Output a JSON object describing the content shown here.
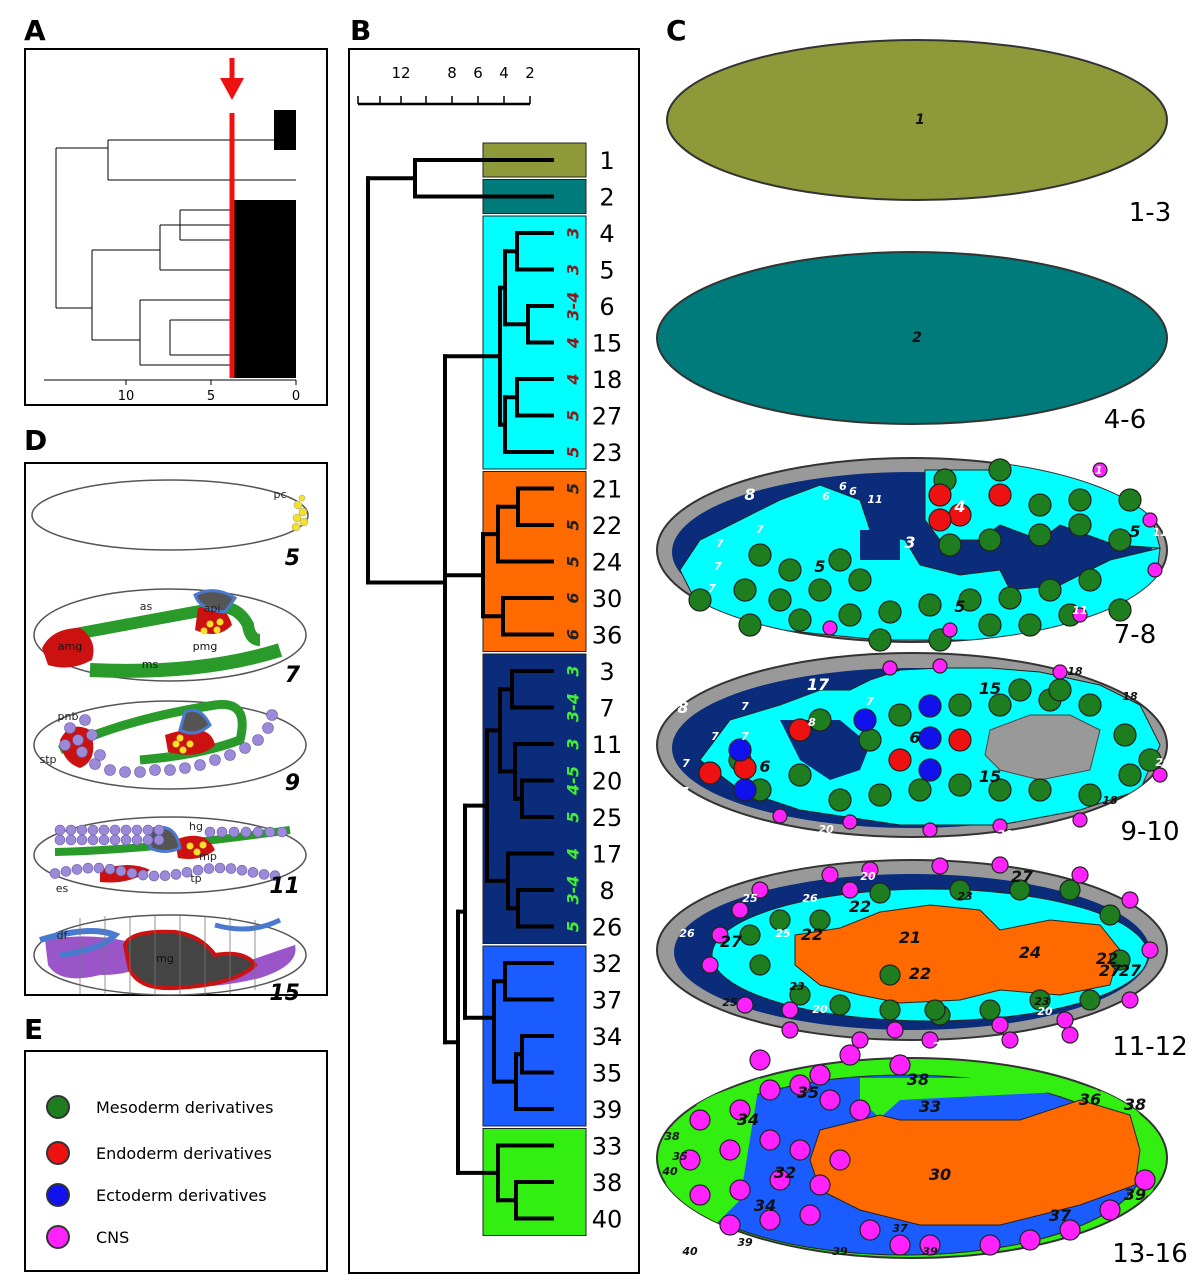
{
  "panels": {
    "a": "A",
    "b": "B",
    "c": "C",
    "d": "D",
    "e": "E"
  },
  "panel_a": {
    "ticks": [
      "10",
      "5",
      "0"
    ]
  },
  "panel_b": {
    "scale_ticks": [
      "12",
      "8",
      "6",
      "4",
      "2"
    ],
    "rows": [
      {
        "id": "1",
        "group": "olive",
        "stage": ""
      },
      {
        "id": "2",
        "group": "teal",
        "stage": ""
      },
      {
        "id": "4",
        "group": "cyan",
        "stage": "3"
      },
      {
        "id": "5",
        "group": "cyan",
        "stage": "3"
      },
      {
        "id": "6",
        "group": "cyan",
        "stage": "3-4"
      },
      {
        "id": "15",
        "group": "cyan",
        "stage": "4"
      },
      {
        "id": "18",
        "group": "cyan",
        "stage": "4"
      },
      {
        "id": "27",
        "group": "cyan",
        "stage": "5"
      },
      {
        "id": "23",
        "group": "cyan",
        "stage": "5"
      },
      {
        "id": "21",
        "group": "orange",
        "stage": "5"
      },
      {
        "id": "22",
        "group": "orange",
        "stage": "5"
      },
      {
        "id": "24",
        "group": "orange",
        "stage": "5"
      },
      {
        "id": "30",
        "group": "orange",
        "stage": "6"
      },
      {
        "id": "36",
        "group": "orange",
        "stage": "6"
      },
      {
        "id": "3",
        "group": "navy",
        "stage": "3"
      },
      {
        "id": "7",
        "group": "navy",
        "stage": "3-4"
      },
      {
        "id": "11",
        "group": "navy",
        "stage": "3"
      },
      {
        "id": "20",
        "group": "navy",
        "stage": "4-5"
      },
      {
        "id": "25",
        "group": "navy",
        "stage": "5"
      },
      {
        "id": "17",
        "group": "navy",
        "stage": "4"
      },
      {
        "id": "8",
        "group": "navy",
        "stage": "3-4"
      },
      {
        "id": "26",
        "group": "navy",
        "stage": "5"
      },
      {
        "id": "32",
        "group": "blue",
        "stage": ""
      },
      {
        "id": "37",
        "group": "blue",
        "stage": ""
      },
      {
        "id": "34",
        "group": "blue",
        "stage": ""
      },
      {
        "id": "35",
        "group": "blue",
        "stage": ""
      },
      {
        "id": "39",
        "group": "blue",
        "stage": ""
      },
      {
        "id": "33",
        "group": "green",
        "stage": ""
      },
      {
        "id": "38",
        "group": "green",
        "stage": ""
      },
      {
        "id": "40",
        "group": "green",
        "stage": ""
      }
    ]
  },
  "panel_c": {
    "stages": [
      "1-3",
      "4-6",
      "7-8",
      "9-10",
      "11-12",
      "13-16"
    ],
    "e1_label": "1",
    "e2_label": "2",
    "e3_labels": [
      "8",
      "3",
      "4",
      "5",
      "5",
      "5",
      "7",
      "7",
      "7",
      "7",
      "6",
      "6",
      "6",
      "11",
      "11",
      "11",
      "11"
    ],
    "e4_labels": [
      "17",
      "8",
      "7",
      "7",
      "7",
      "7",
      "7",
      "7",
      "8",
      "6",
      "6",
      "15",
      "15",
      "18",
      "18",
      "20",
      "20",
      "20",
      "18"
    ],
    "e5_labels": [
      "26",
      "25",
      "26",
      "25",
      "27",
      "23",
      "25",
      "20",
      "20",
      "20",
      "20",
      "20",
      "21",
      "22",
      "22",
      "22",
      "24",
      "22",
      "23",
      "27",
      "23",
      "27",
      "27"
    ],
    "e6_labels": [
      "38",
      "33",
      "36",
      "38",
      "35",
      "34",
      "32",
      "34",
      "30",
      "39",
      "37",
      "37",
      "39",
      "39",
      "38",
      "40",
      "35",
      "40",
      "39"
    ]
  },
  "panel_d": {
    "stage_numbers": [
      "5",
      "7",
      "9",
      "11",
      "15"
    ],
    "tissue_labels": [
      "pc",
      "as",
      "api",
      "amg",
      "pmg",
      "ms",
      "pnb",
      "stp",
      "hg",
      "mp",
      "es",
      "tp",
      "mg",
      "df"
    ]
  },
  "legend": {
    "items": [
      {
        "label": "Mesoderm derivatives",
        "color": "#1e7d1e"
      },
      {
        "label": "Endoderm derivatives",
        "color": "#ee1111"
      },
      {
        "label": "Ectoderm derivatives",
        "color": "#1111ee"
      },
      {
        "label": "CNS",
        "color": "#ff22ff"
      }
    ]
  },
  "colors": {
    "olive": "#8e9a3a",
    "teal": "#007b7b",
    "cyan": "#00ffff",
    "orange": "#ff6a00",
    "navy": "#0a2c7a",
    "blue": "#1a5cff",
    "green": "#33ee11"
  }
}
